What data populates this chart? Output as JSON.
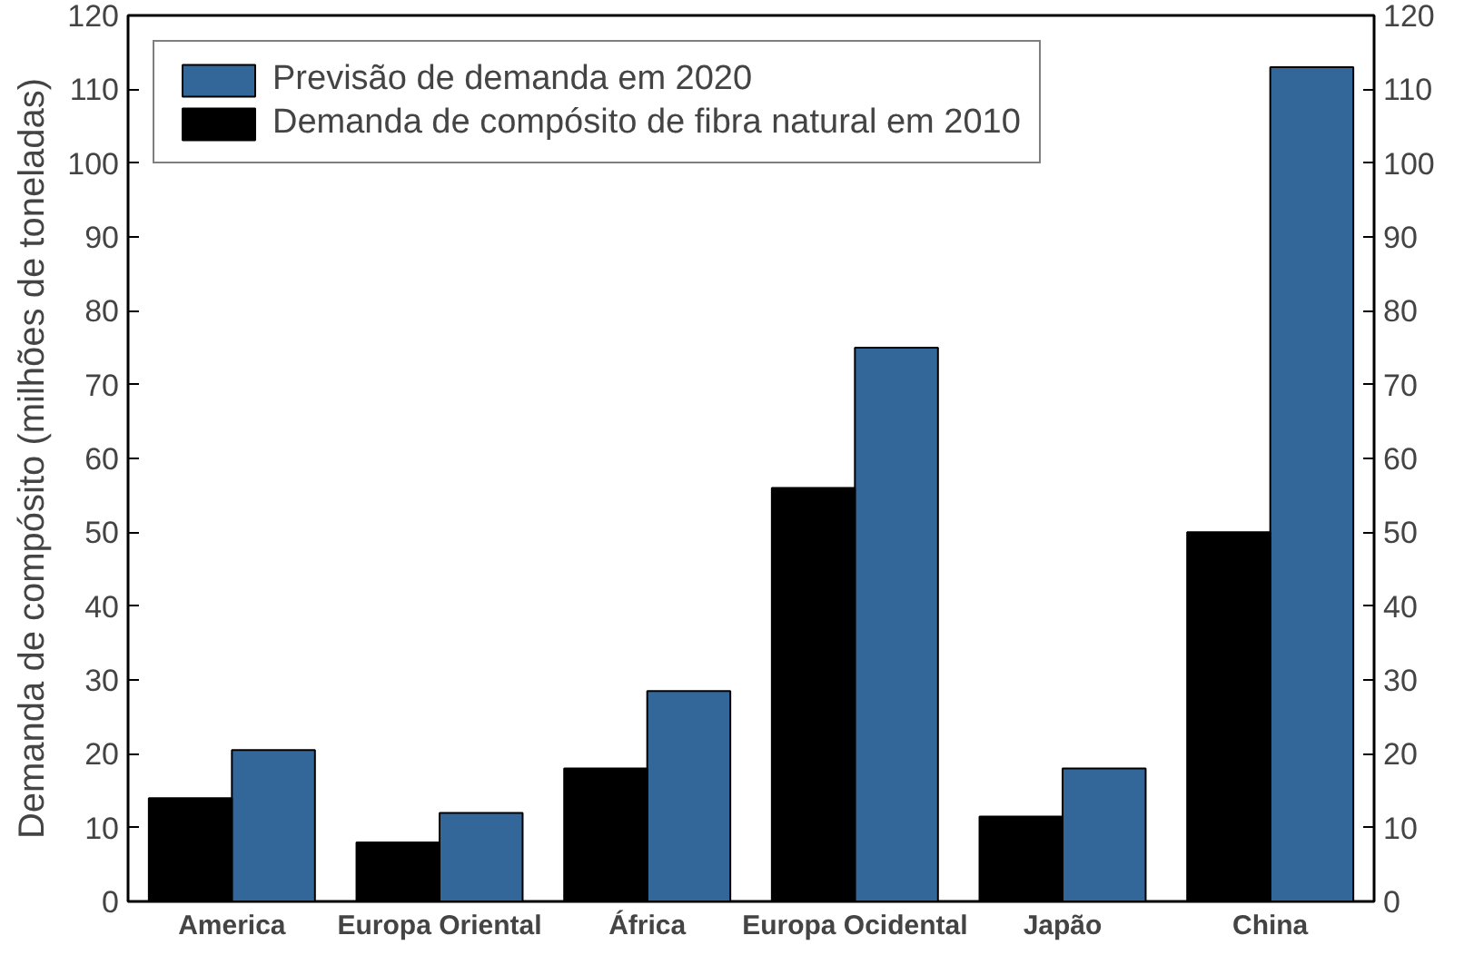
{
  "chart_data": {
    "type": "bar",
    "ylabel": "Demanda de compósito (milhões de toneladas)",
    "categories": [
      "America",
      "Europa Oriental",
      "África",
      "Europa Ocidental",
      "Japão",
      "China"
    ],
    "series": [
      {
        "name": "Previsão de demanda em 2020",
        "color": "#336699",
        "values": [
          20.5,
          12,
          28.5,
          75,
          18,
          113
        ]
      },
      {
        "name": "Demanda de compósito de fibra natural em 2010",
        "color": "#000000",
        "values": [
          14,
          8,
          18,
          56,
          11.5,
          50
        ]
      }
    ],
    "ylim": [
      0,
      120
    ],
    "yticks": [
      0,
      10,
      20,
      30,
      40,
      50,
      60,
      70,
      80,
      90,
      100,
      110,
      120
    ],
    "y2lim": [
      0,
      120
    ],
    "y2ticks": [
      0,
      10,
      20,
      30,
      40,
      50,
      60,
      70,
      80,
      90,
      100,
      110,
      120
    ],
    "legend": "top left",
    "grid": false
  }
}
